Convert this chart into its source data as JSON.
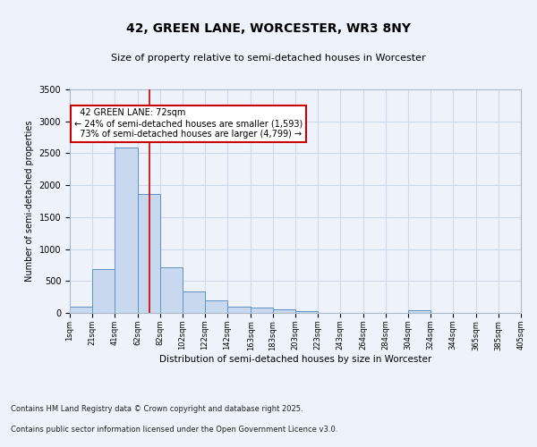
{
  "title": "42, GREEN LANE, WORCESTER, WR3 8NY",
  "subtitle": "Size of property relative to semi-detached houses in Worcester",
  "xlabel": "Distribution of semi-detached houses by size in Worcester",
  "ylabel": "Number of semi-detached properties",
  "property_size": 72,
  "property_label": "42 GREEN LANE: 72sqm",
  "pct_smaller": 24,
  "pct_larger": 73,
  "count_smaller": 1593,
  "count_larger": 4799,
  "footnote1": "Contains HM Land Registry data © Crown copyright and database right 2025.",
  "footnote2": "Contains public sector information licensed under the Open Government Licence v3.0.",
  "bar_color": "#c8d8ee",
  "bar_edge_color": "#6090c0",
  "grid_color": "#ccd8ec",
  "background_color": "#eef2fa",
  "annotation_box_color": "#ffffff",
  "annotation_border_color": "#cc0000",
  "vline_color": "#cc0000",
  "bins": [
    1,
    21,
    41,
    62,
    82,
    102,
    122,
    142,
    163,
    183,
    203,
    223,
    243,
    264,
    284,
    304,
    324,
    344,
    365,
    385,
    405
  ],
  "bin_labels": [
    "1sqm",
    "21sqm",
    "41sqm",
    "62sqm",
    "82sqm",
    "102sqm",
    "122sqm",
    "142sqm",
    "163sqm",
    "183sqm",
    "203sqm",
    "223sqm",
    "243sqm",
    "264sqm",
    "284sqm",
    "304sqm",
    "324sqm",
    "344sqm",
    "365sqm",
    "385sqm",
    "405sqm"
  ],
  "values": [
    100,
    680,
    2590,
    1860,
    720,
    340,
    200,
    100,
    80,
    50,
    30,
    0,
    0,
    0,
    0,
    45,
    0,
    0,
    0,
    0
  ],
  "ylim": [
    0,
    3500
  ],
  "yticks": [
    0,
    500,
    1000,
    1500,
    2000,
    2500,
    3000,
    3500
  ]
}
